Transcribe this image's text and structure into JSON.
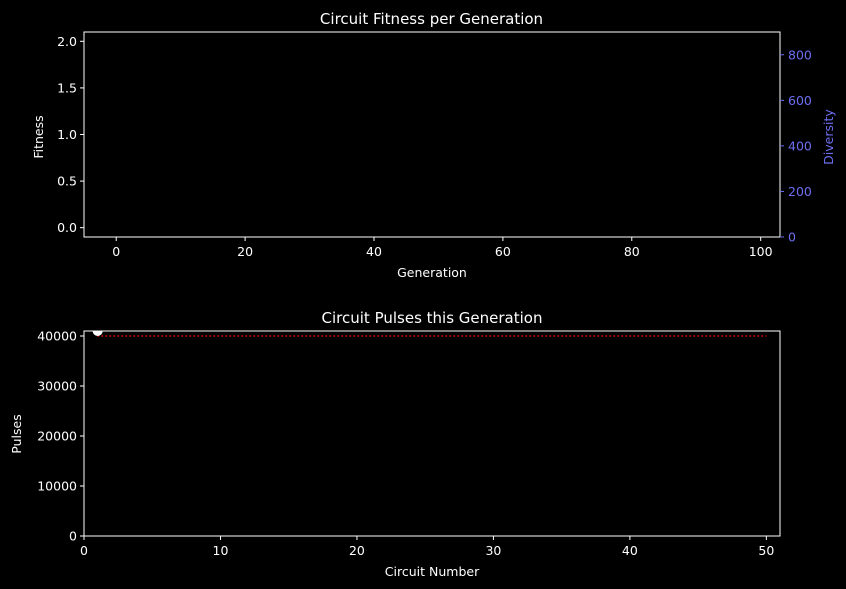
{
  "colors": {
    "background": "#000000",
    "foreground": "#ffffff",
    "diversity_axis": "#6e6ef0",
    "threshold_line": "#ff0000",
    "point": "#ffffff"
  },
  "chart_data": [
    {
      "type": "line",
      "title": "Circuit Fitness per Generation",
      "xlabel": "Generation",
      "ylabel": "Fitness",
      "y2label": "Diversity",
      "xlim": [
        -5,
        103
      ],
      "ylim": [
        -0.1,
        2.1
      ],
      "y2lim": [
        0,
        900
      ],
      "xticks": [
        0,
        20,
        40,
        60,
        80,
        100
      ],
      "yticks": [
        0.0,
        0.5,
        1.0,
        1.5,
        2.0
      ],
      "ytick_labels": [
        "0.0",
        "0.5",
        "1.0",
        "1.5",
        "2.0"
      ],
      "y2ticks": [
        0,
        200,
        400,
        600,
        800
      ],
      "grid": false,
      "series": []
    },
    {
      "type": "scatter",
      "title": "Circuit Pulses this Generation",
      "xlabel": "Circuit Number",
      "ylabel": "Pulses",
      "xlim": [
        0,
        51
      ],
      "ylim": [
        0,
        41000
      ],
      "xticks": [
        0,
        10,
        20,
        30,
        40,
        50
      ],
      "yticks": [
        0,
        10000,
        20000,
        30000,
        40000
      ],
      "grid": false,
      "threshold": 40000,
      "points": [
        {
          "x": 1,
          "y": 41000
        }
      ]
    }
  ]
}
